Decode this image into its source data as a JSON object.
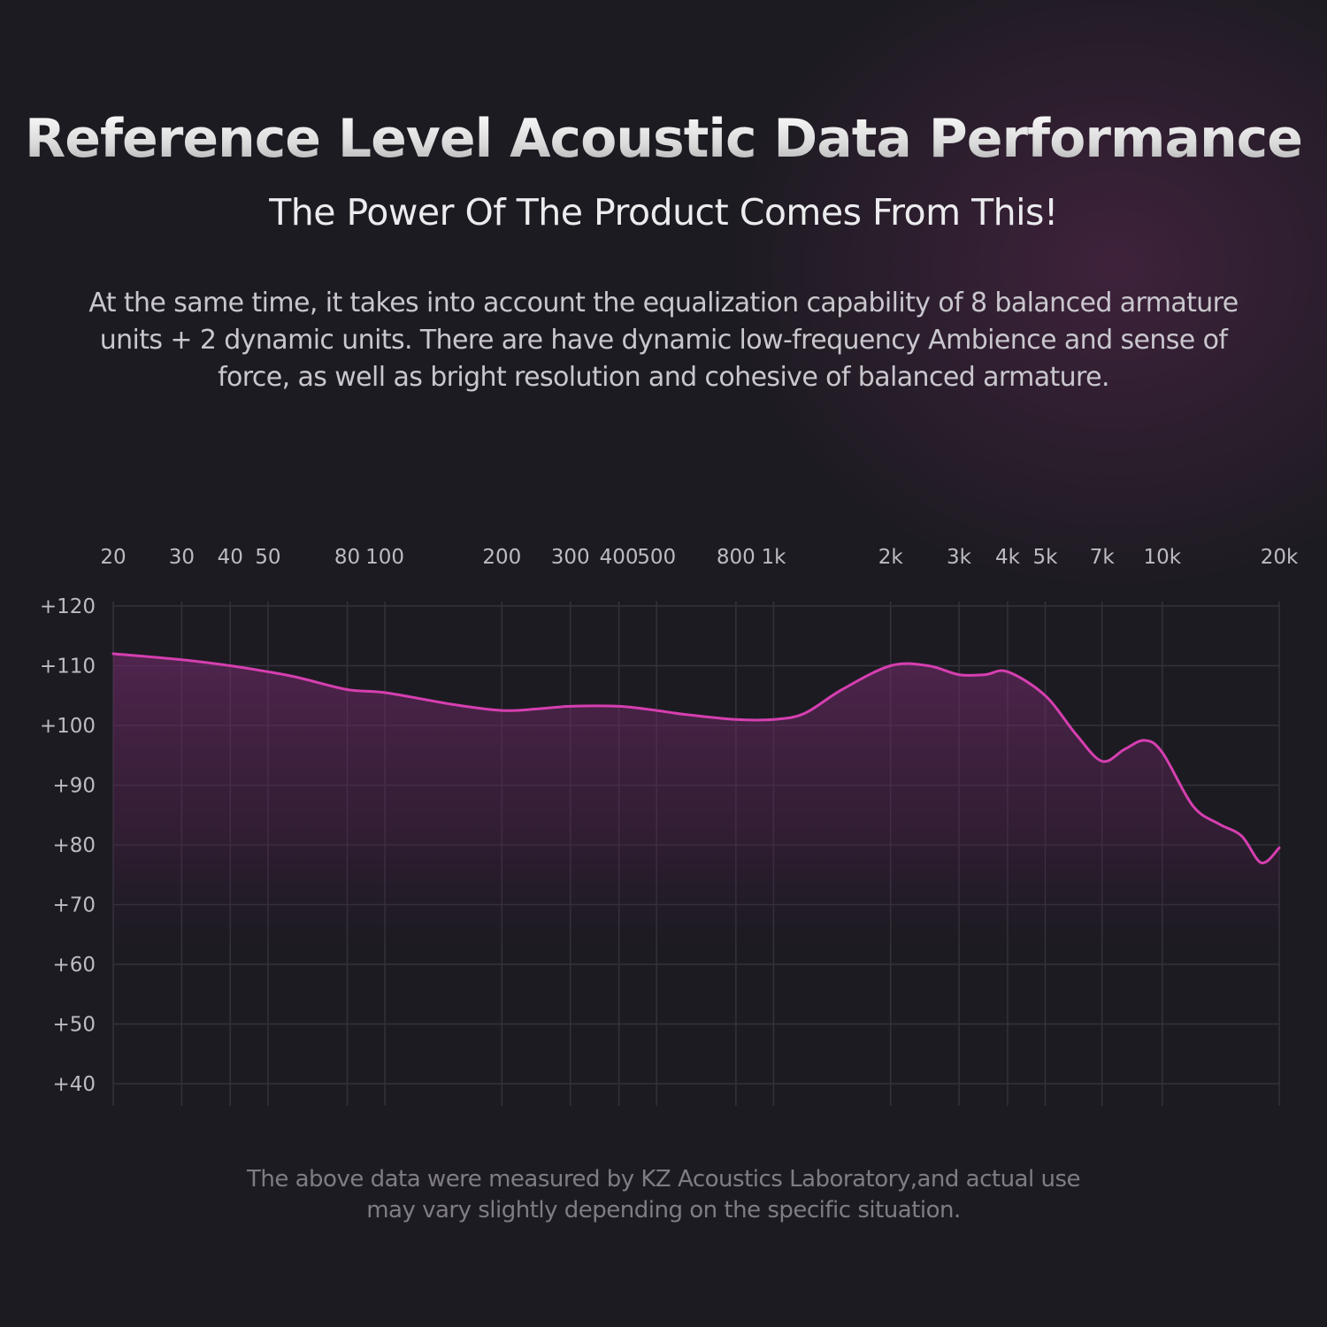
{
  "header": {
    "title": "Reference Level Acoustic Data Performance",
    "subtitle": "The Power Of The Product Comes From This!",
    "description": "At the same time, it takes into account the equalization capability of 8 balanced armature units + 2 dynamic units. There are have dynamic low-frequency Ambience and sense of force, as well as bright resolution and cohesive of balanced armature."
  },
  "footnote": "The above data were measured by KZ Acoustics Laboratory,and actual use may vary slightly depending on the specific situation.",
  "colors": {
    "background": "#1d1b22",
    "curve": "#d63fb0",
    "fill": "#6e2a6a",
    "grid": "#34313a"
  },
  "chart_data": {
    "type": "line",
    "x_scale": "log",
    "grid": true,
    "xlim": [
      20,
      20000
    ],
    "ylim": [
      40,
      120
    ],
    "x_ticks": [
      {
        "value": 20,
        "label": "20"
      },
      {
        "value": 30,
        "label": "30"
      },
      {
        "value": 40,
        "label": "40"
      },
      {
        "value": 50,
        "label": "50"
      },
      {
        "value": 80,
        "label": "80"
      },
      {
        "value": 100,
        "label": "100"
      },
      {
        "value": 200,
        "label": "200"
      },
      {
        "value": 300,
        "label": "300"
      },
      {
        "value": 400,
        "label": "400"
      },
      {
        "value": 500,
        "label": "500"
      },
      {
        "value": 800,
        "label": "800"
      },
      {
        "value": 1000,
        "label": "1k"
      },
      {
        "value": 2000,
        "label": "2k"
      },
      {
        "value": 3000,
        "label": "3k"
      },
      {
        "value": 4000,
        "label": "4k"
      },
      {
        "value": 5000,
        "label": "5k"
      },
      {
        "value": 7000,
        "label": "7k"
      },
      {
        "value": 10000,
        "label": "10k"
      },
      {
        "value": 20000,
        "label": "20k"
      }
    ],
    "y_ticks": [
      {
        "value": 120,
        "label": "+120"
      },
      {
        "value": 110,
        "label": "+110"
      },
      {
        "value": 100,
        "label": "+100"
      },
      {
        "value": 90,
        "label": "+90"
      },
      {
        "value": 80,
        "label": "+80"
      },
      {
        "value": 70,
        "label": "+70"
      },
      {
        "value": 60,
        "label": "+60"
      },
      {
        "value": 50,
        "label": "+50"
      },
      {
        "value": 40,
        "label": "+40"
      }
    ],
    "series": [
      {
        "x": [
          20,
          30,
          40,
          50,
          60,
          80,
          100,
          150,
          200,
          250,
          300,
          400,
          500,
          600,
          800,
          1000,
          1200,
          1500,
          2000,
          2500,
          3000,
          3500,
          4000,
          5000,
          6000,
          7000,
          8000,
          9000,
          10000,
          12000,
          14000,
          16000,
          18000,
          20000
        ],
        "y": [
          112,
          111,
          110,
          109,
          108,
          106,
          105.5,
          103.5,
          102.5,
          102.8,
          103.2,
          103.2,
          102.5,
          101.8,
          101,
          101,
          102,
          106,
          110,
          110,
          108.5,
          108.5,
          109,
          105,
          98.5,
          94,
          96,
          97.5,
          95.5,
          86.5,
          83.5,
          81.5,
          77,
          79.5
        ]
      }
    ]
  }
}
